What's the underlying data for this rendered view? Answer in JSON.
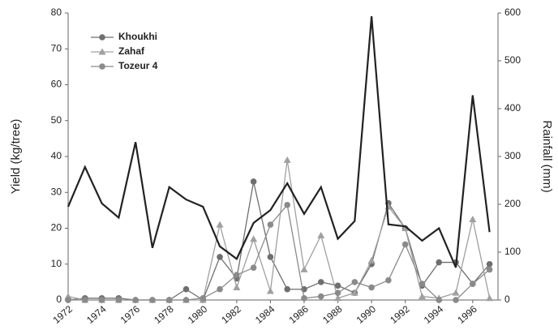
{
  "chart_data": {
    "type": "line",
    "x": [
      1972,
      1973,
      1974,
      1975,
      1976,
      1977,
      1978,
      1979,
      1980,
      1981,
      1982,
      1983,
      1984,
      1985,
      1986,
      1987,
      1988,
      1989,
      1990,
      1991,
      1992,
      1993,
      1994,
      1995,
      1996,
      1997
    ],
    "xlim": [
      1972,
      1997.5
    ],
    "xticks": [
      1972,
      1974,
      1976,
      1978,
      1980,
      1982,
      1984,
      1986,
      1988,
      1990,
      1992,
      1994,
      1996
    ],
    "ylabel": "Yield (kg/tree)",
    "ylim": [
      0,
      80
    ],
    "yticks": [
      0,
      10,
      20,
      30,
      40,
      50,
      60,
      70,
      80
    ],
    "y2label": "Rainfall (mm)",
    "y2lim": [
      0,
      600
    ],
    "y2ticks": [
      0,
      100,
      200,
      300,
      400,
      500,
      600
    ],
    "legend": "upper-left",
    "series": [
      {
        "name": "Khoukhi",
        "color": "#6f6f6f",
        "marker": "circle",
        "values": [
          0,
          0.5,
          0.5,
          0.5,
          0,
          0,
          0,
          3,
          0,
          12,
          6,
          33,
          12,
          3,
          3,
          5,
          4,
          2,
          10,
          27,
          20,
          4,
          10.5,
          10.5,
          4.5,
          10
        ]
      },
      {
        "name": "Zahaf",
        "color": "#a0a0a0",
        "marker": "triangle",
        "values": [
          1,
          0,
          0,
          0,
          0,
          0,
          0,
          0,
          0,
          21,
          3.5,
          17,
          2.5,
          39,
          8.5,
          18,
          0.5,
          2,
          11,
          26,
          20,
          1,
          0.5,
          2,
          22.5,
          0.5
        ]
      },
      {
        "name": "Tozeur 4",
        "color": "#8a8a8a",
        "marker": "circle",
        "values": [
          0,
          0,
          0,
          0,
          0,
          0,
          0,
          0,
          0.5,
          3,
          7,
          9,
          21,
          26.5,
          0.5,
          1,
          2,
          5,
          3.5,
          5.5,
          15.5,
          4.5,
          0,
          0,
          4.5,
          8.5
        ]
      },
      {
        "color": "#222222",
        "axis": "y2",
        "marker": "none",
        "values": [
          195,
          278,
          202,
          172,
          330,
          109,
          236,
          210,
          195,
          112,
          86,
          161,
          188,
          244,
          180,
          236,
          128,
          165,
          593,
          158,
          154,
          124,
          150,
          68,
          428,
          142
        ]
      }
    ]
  }
}
